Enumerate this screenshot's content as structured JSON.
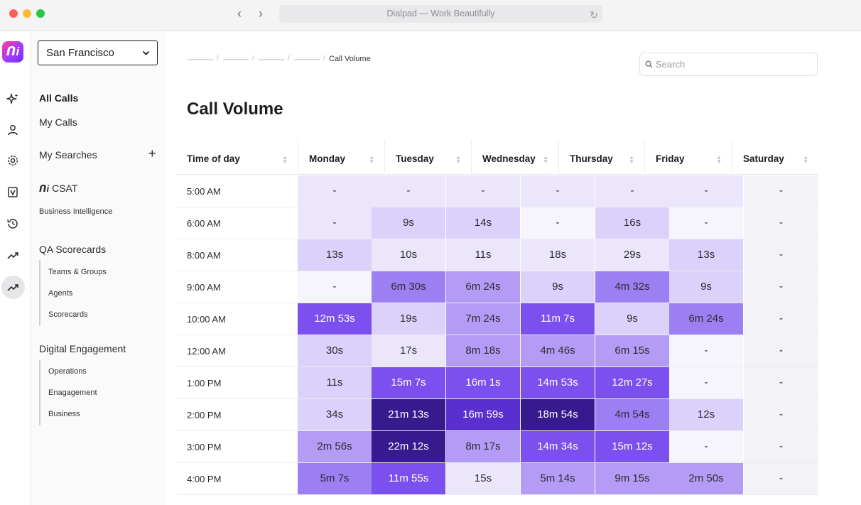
{
  "window": {
    "title": "Dialpad — Work Beautifully"
  },
  "sidebar": {
    "location": "San Francisco",
    "items": {
      "all_calls": "All Calls",
      "my_calls": "My Calls",
      "my_searches": "My Searches",
      "csat": "CSAT",
      "business_intelligence": "Business Intelligence",
      "qa_scorecards": "QA Scorecards",
      "teams_groups": "Teams & Groups",
      "agents": "Agents",
      "scorecards": "Scorecards",
      "digital_engagement": "Digital Engagement",
      "operations": "Operations",
      "engagement": "Enagagement",
      "business": "Business"
    }
  },
  "main": {
    "breadcrumb_current": "Call Volume",
    "search_placeholder": "Search",
    "title": "Call Volume"
  },
  "table": {
    "headers": [
      "Time of day",
      "Monday",
      "Tuesday",
      "Wednesday",
      "Thursday",
      "Friday",
      "Saturday"
    ],
    "rows": [
      {
        "label": "5:00 AM",
        "cells": [
          "-",
          "-",
          "-",
          "-",
          "-",
          "-"
        ],
        "levels": [
          1,
          1,
          1,
          1,
          1,
          1
        ]
      },
      {
        "label": "6:00 AM",
        "cells": [
          "-",
          "9s",
          "14s",
          "-",
          "16s",
          "-"
        ],
        "levels": [
          1,
          2,
          2,
          0,
          2,
          0
        ]
      },
      {
        "label": "8:00 AM",
        "cells": [
          "13s",
          "10s",
          "11s",
          "18s",
          "29s",
          "13s"
        ],
        "levels": [
          2,
          1,
          1,
          1,
          1,
          2
        ]
      },
      {
        "label": "9:00 AM",
        "cells": [
          "-",
          "6m 30s",
          "6m 24s",
          "9s",
          "4m 32s",
          "9s"
        ],
        "levels": [
          0,
          4,
          3,
          2,
          4,
          2
        ]
      },
      {
        "label": "10:00 AM",
        "cells": [
          "12m 53s",
          "19s",
          "7m 24s",
          "11m 7s",
          "9s",
          "6m 24s"
        ],
        "levels": [
          5,
          2,
          3,
          5,
          2,
          4
        ]
      },
      {
        "label": "12:00 AM",
        "cells": [
          "30s",
          "17s",
          "8m 18s",
          "4m 46s",
          "6m 15s",
          "-"
        ],
        "levels": [
          2,
          1,
          3,
          3,
          3,
          0
        ]
      },
      {
        "label": "1:00 PM",
        "cells": [
          "11s",
          "15m 7s",
          "16m 1s",
          "14m 53s",
          "12m 27s",
          "-"
        ],
        "levels": [
          2,
          5,
          5,
          5,
          5,
          0
        ]
      },
      {
        "label": "2:00 PM",
        "cells": [
          "34s",
          "21m 13s",
          "16m 59s",
          "18m 54s",
          "4m 54s",
          "12s"
        ],
        "levels": [
          2,
          7,
          6,
          7,
          4,
          2
        ]
      },
      {
        "label": "3:00 PM",
        "cells": [
          "2m 56s",
          "22m 12s",
          "8m 17s",
          "14m 34s",
          "15m 12s",
          "-"
        ],
        "levels": [
          3,
          7,
          3,
          5,
          5,
          0
        ]
      },
      {
        "label": "4:00 PM",
        "cells": [
          "5m 7s",
          "11m 55s",
          "15s",
          "5m 14s",
          "9m 15s",
          "2m 50s"
        ],
        "levels": [
          4,
          5,
          1,
          3,
          3,
          3
        ]
      }
    ],
    "saturday": [
      "-",
      "-",
      "-",
      "-",
      "-",
      "-",
      "-",
      "-",
      "-",
      "-"
    ]
  },
  "colors": {
    "level_0": "#f6f4fd",
    "level_1": "#ece6fc",
    "level_2": "#dcd1fb",
    "level_3": "#b49cf6",
    "level_4": "#9d7ff4",
    "level_5": "#7b50ee",
    "level_6": "#5a2fd0",
    "level_7": "#361a8e",
    "saturday": "#f3f2f6"
  }
}
